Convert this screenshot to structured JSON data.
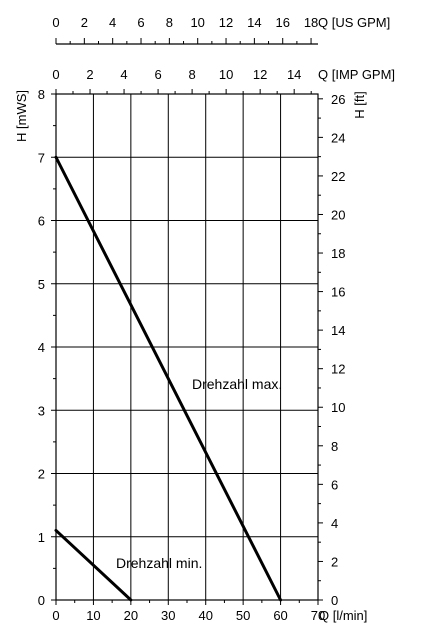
{
  "chart_data": {
    "type": "line",
    "axes": {
      "x_bottom": {
        "label": "Q [l/min]",
        "range": [
          0,
          70
        ],
        "ticks": [
          "0",
          "10",
          "20",
          "30",
          "40",
          "50",
          "60",
          "70"
        ]
      },
      "x_top_imp": {
        "label": "Q [IMP GPM]",
        "range": [
          0,
          15.4
        ],
        "ticks": [
          "0",
          "2",
          "4",
          "6",
          "8",
          "10",
          "12",
          "14"
        ]
      },
      "x_top_us": {
        "label": "Q [US GPM]",
        "range": [
          0,
          18.49
        ],
        "ticks": [
          "0",
          "2",
          "4",
          "6",
          "8",
          "10",
          "12",
          "14",
          "16",
          "18"
        ]
      },
      "y_left": {
        "label": "H [mWS]",
        "range": [
          0,
          8
        ],
        "ticks": [
          "0",
          "1",
          "2",
          "3",
          "4",
          "5",
          "6",
          "7",
          "8"
        ]
      },
      "y_right": {
        "label": "H [ft]",
        "range": [
          0,
          26.25
        ],
        "ticks": [
          "0",
          "2",
          "4",
          "6",
          "8",
          "10",
          "12",
          "14",
          "16",
          "18",
          "20",
          "22",
          "24",
          "26"
        ]
      }
    },
    "grid": true,
    "series": [
      {
        "name": "Drehzahl max.",
        "x": [
          0,
          60
        ],
        "y": [
          7,
          0
        ]
      },
      {
        "name": "Drehzahl min.",
        "x": [
          0,
          20
        ],
        "y": [
          1.1,
          0
        ]
      }
    ]
  }
}
